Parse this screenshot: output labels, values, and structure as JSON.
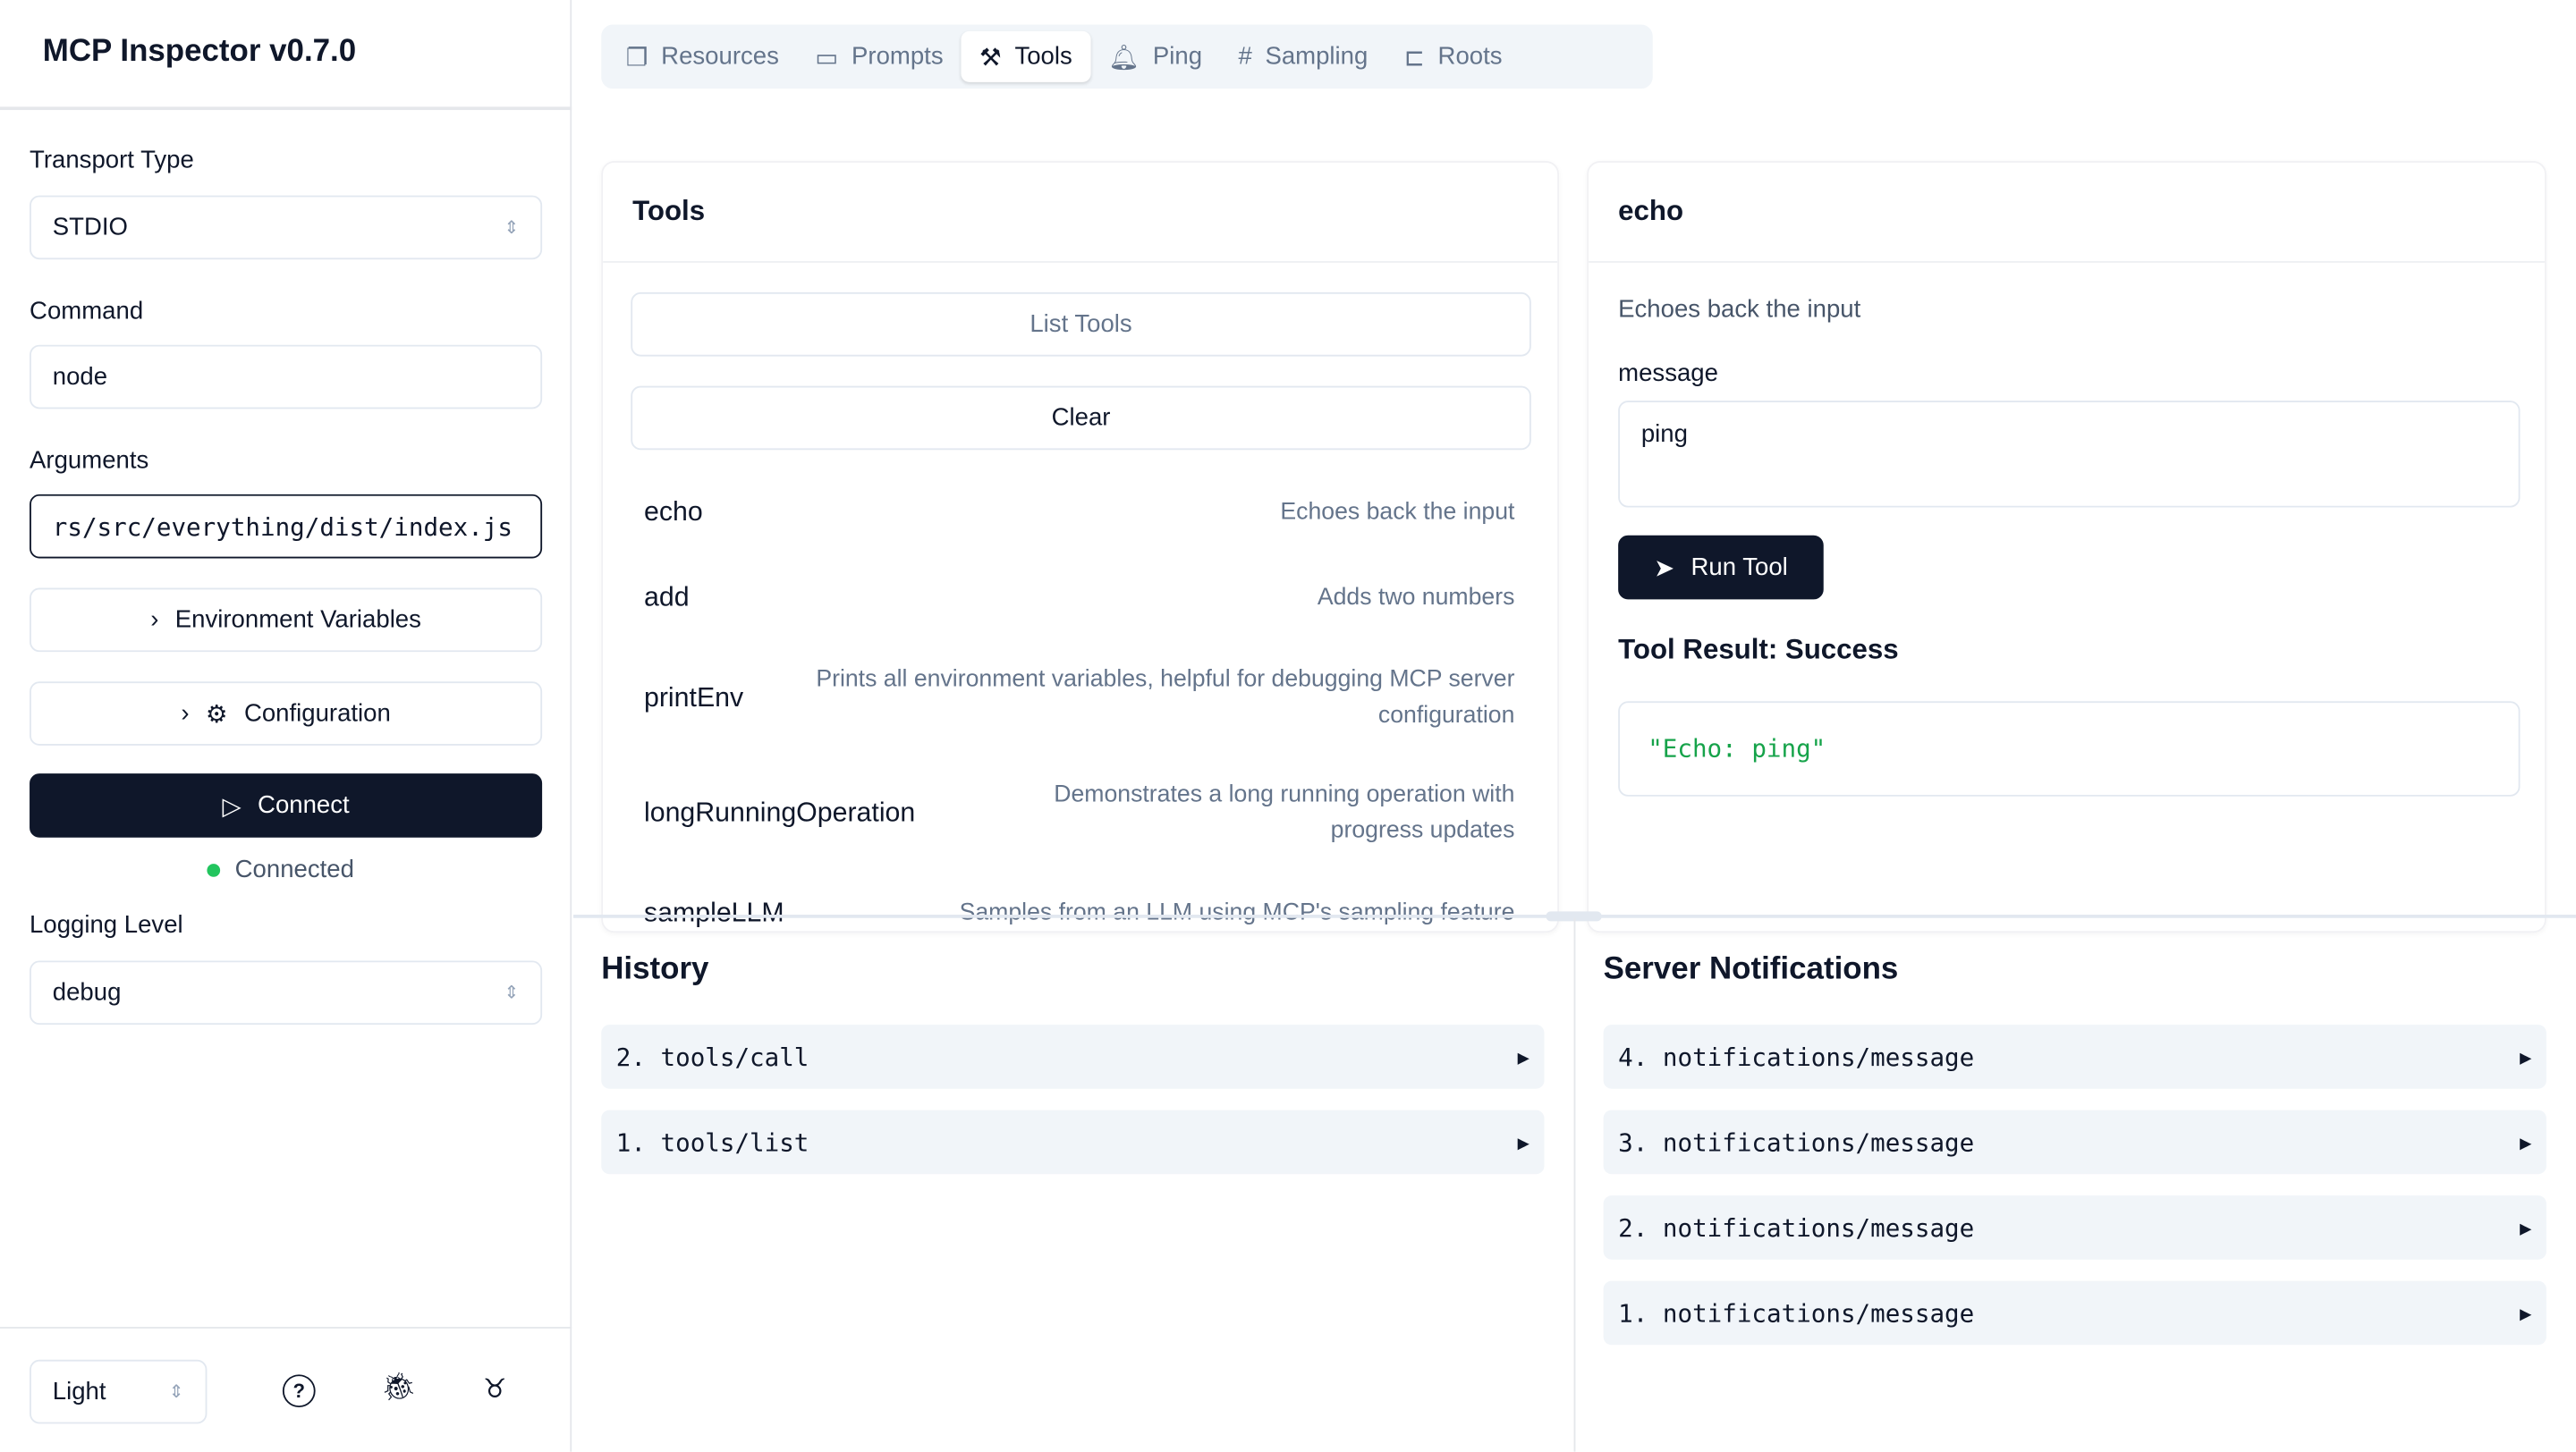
{
  "app": {
    "title": "MCP Inspector v0.7.0"
  },
  "sidebar": {
    "transport_label": "Transport Type",
    "transport_value": "STDIO",
    "command_label": "Command",
    "command_value": "node",
    "arguments_label": "Arguments",
    "arguments_value": "rs/src/everything/dist/index.js",
    "env_button": "Environment Variables",
    "config_button": "Configuration",
    "connect_button": "Connect",
    "status": "Connected",
    "status_color": "#22c55e",
    "logging_label": "Logging Level",
    "logging_value": "debug",
    "theme_value": "Light"
  },
  "tabs": [
    {
      "label": "Resources",
      "icon": "files-icon"
    },
    {
      "label": "Prompts",
      "icon": "message-square-icon"
    },
    {
      "label": "Tools",
      "icon": "hammer-icon",
      "active": true
    },
    {
      "label": "Ping",
      "icon": "bell-icon"
    },
    {
      "label": "Sampling",
      "icon": "hash-icon"
    },
    {
      "label": "Roots",
      "icon": "folder-tree-icon"
    }
  ],
  "tools_panel": {
    "title": "Tools",
    "list_button": "List Tools",
    "clear_button": "Clear",
    "items": [
      {
        "name": "echo",
        "description": "Echoes back the input"
      },
      {
        "name": "add",
        "description": "Adds two numbers"
      },
      {
        "name": "printEnv",
        "description": "Prints all environment variables, helpful for debugging MCP server configuration"
      },
      {
        "name": "longRunningOperation",
        "description": "Demonstrates a long running operation with progress updates"
      },
      {
        "name": "sampleLLM",
        "description": "Samples from an LLM using MCP's sampling feature"
      }
    ]
  },
  "detail_panel": {
    "title": "echo",
    "description": "Echoes back the input",
    "field_label": "message",
    "field_value": "ping",
    "run_button": "Run Tool",
    "result_title": "Tool Result: Success",
    "result_value": "\"Echo: ping\"",
    "result_color": "#16a34a"
  },
  "history": {
    "title": "History",
    "items": [
      "2. tools/call",
      "1. tools/list"
    ]
  },
  "notifications": {
    "title": "Server Notifications",
    "items": [
      "4. notifications/message",
      "3. notifications/message",
      "2. notifications/message",
      "1. notifications/message"
    ]
  }
}
